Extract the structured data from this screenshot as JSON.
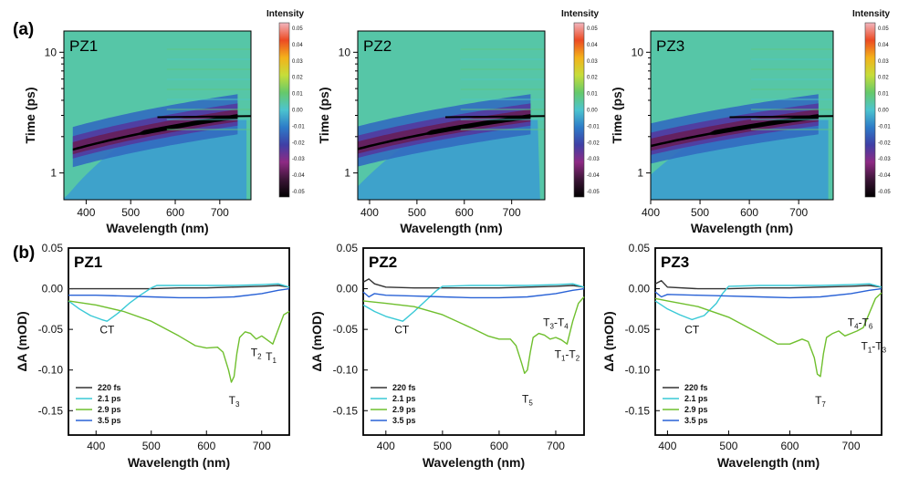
{
  "figure": {
    "panel_a_label": "(a)",
    "panel_b_label": "(b)",
    "colorbar_title": "Intensity",
    "colorbar_ticks": [
      "0.05",
      "0.04",
      "0.03",
      "0.02",
      "0.01",
      "0.00",
      "-0.01",
      "-0.02",
      "-0.03",
      "-0.04",
      "-0.05"
    ],
    "colorbar_ticks_pz3": [
      "0.05",
      "0.04",
      "0.03",
      "0.02",
      "0.01",
      "0.00",
      "-0.01",
      "-0.02",
      "-0.03",
      "-0.04",
      "-0.05"
    ],
    "colormap": [
      "#000000",
      "#3b1536",
      "#8e2a84",
      "#3f3fa6",
      "#2d7bc8",
      "#4cc4cf",
      "#66c96a",
      "#c6dd3a",
      "#f3b21a",
      "#ec4a23",
      "#f2b6bf"
    ],
    "kinetic_colors": {
      "220 fs": "#333333",
      "2.1 ps": "#39c9d6",
      "2.9 ps": "#6fbf2e",
      "3.5 ps": "#2962d6"
    }
  },
  "chart_data": [
    {
      "type": "heatmap",
      "title": "PZ1",
      "xlabel": "Wavelength (nm)",
      "ylabel": "Time (ps)",
      "xlim": [
        350,
        770
      ],
      "ylim": [
        0.6,
        15
      ],
      "yscale": "log",
      "xticks": [
        "400",
        "500",
        "600",
        "700"
      ],
      "yticks": [
        "1",
        "10"
      ],
      "zlim": [
        -0.05,
        0.05
      ],
      "colorbar_label": "Intensity"
    },
    {
      "type": "heatmap",
      "title": "PZ2",
      "xlabel": "Wavelength (nm)",
      "ylabel": "Time (ps)",
      "xlim": [
        375,
        770
      ],
      "ylim": [
        0.6,
        15
      ],
      "yscale": "log",
      "xticks": [
        "400",
        "500",
        "600",
        "700"
      ],
      "yticks": [
        "1",
        "10"
      ],
      "zlim": [
        -0.05,
        0.05
      ],
      "colorbar_label": "Intensity"
    },
    {
      "type": "heatmap",
      "title": "PZ3",
      "xlabel": "Wavelength (nm)",
      "ylabel": "Time (ps)",
      "xlim": [
        400,
        770
      ],
      "ylim": [
        0.6,
        15
      ],
      "yscale": "log",
      "xticks": [
        "400",
        "500",
        "600",
        "700"
      ],
      "yticks": [
        "1",
        "10"
      ],
      "zlim": [
        -0.05,
        0.05
      ],
      "colorbar_label": "Intensity"
    },
    {
      "type": "line",
      "title": "PZ1",
      "xlabel": "Wavelength (nm)",
      "ylabel": "ΔA (mOD)",
      "xlim": [
        350,
        750
      ],
      "ylim": [
        -0.18,
        0.05
      ],
      "xticks": [
        "400",
        "500",
        "600",
        "700"
      ],
      "yticks": [
        "0.05",
        "0.00",
        "-0.05",
        "-0.10",
        "-0.15"
      ],
      "legend": "bottom-left",
      "annotations": [
        {
          "text": "CT",
          "sub": "",
          "x": 420,
          "y": -0.055
        },
        {
          "text": "T",
          "sub": "3",
          "x": 650,
          "y": -0.142
        },
        {
          "text": "T",
          "sub": "2",
          "x": 690,
          "y": -0.083
        },
        {
          "text": "T",
          "sub": "1",
          "x": 717,
          "y": -0.088
        }
      ],
      "series": [
        {
          "name": "220 fs",
          "x": [
            350,
            400,
            450,
            500,
            550,
            600,
            650,
            700,
            730,
            750
          ],
          "y": [
            0.0,
            0.0,
            0.0,
            0.0,
            0.001,
            0.001,
            0.002,
            0.003,
            0.004,
            0.002
          ]
        },
        {
          "name": "2.1 ps",
          "x": [
            350,
            370,
            390,
            410,
            420,
            440,
            460,
            480,
            500,
            510,
            550,
            600,
            650,
            700,
            730,
            750
          ],
          "y": [
            -0.015,
            -0.025,
            -0.033,
            -0.038,
            -0.04,
            -0.03,
            -0.018,
            -0.008,
            0.001,
            0.004,
            0.004,
            0.004,
            0.004,
            0.005,
            0.006,
            0.002
          ]
        },
        {
          "name": "2.9 ps",
          "x": [
            350,
            400,
            450,
            500,
            550,
            580,
            600,
            620,
            630,
            640,
            645,
            650,
            655,
            660,
            670,
            680,
            690,
            700,
            710,
            720,
            730,
            740,
            750
          ],
          "y": [
            -0.015,
            -0.02,
            -0.028,
            -0.04,
            -0.058,
            -0.07,
            -0.073,
            -0.072,
            -0.078,
            -0.1,
            -0.115,
            -0.108,
            -0.08,
            -0.06,
            -0.053,
            -0.055,
            -0.062,
            -0.058,
            -0.063,
            -0.068,
            -0.05,
            -0.032,
            -0.028
          ]
        },
        {
          "name": "3.5 ps",
          "x": [
            350,
            400,
            450,
            500,
            550,
            600,
            650,
            700,
            730,
            750
          ],
          "y": [
            -0.008,
            -0.008,
            -0.009,
            -0.01,
            -0.011,
            -0.011,
            -0.01,
            -0.006,
            -0.002,
            0.0
          ]
        }
      ]
    },
    {
      "type": "line",
      "title": "PZ2",
      "xlabel": "Wavelength (nm)",
      "ylabel": "ΔA (mOD)",
      "xlim": [
        360,
        750
      ],
      "ylim": [
        -0.18,
        0.05
      ],
      "xticks": [
        "400",
        "500",
        "600",
        "700"
      ],
      "yticks": [
        "0.05",
        "0.00",
        "-0.05",
        "-0.10",
        "-0.15"
      ],
      "legend": "bottom-left",
      "annotations": [
        {
          "text": "CT",
          "sub": "",
          "x": 428,
          "y": -0.055
        },
        {
          "text": "T",
          "sub": "5",
          "x": 650,
          "y": -0.14
        },
        {
          "text": "T",
          "sub": "3",
          "text2": "-T",
          "sub2": "4",
          "x": 700,
          "y": -0.046
        },
        {
          "text": "T",
          "sub": "1",
          "text2": "-T",
          "sub2": "2",
          "x": 720,
          "y": -0.085
        }
      ],
      "series": [
        {
          "name": "220 fs",
          "x": [
            360,
            370,
            380,
            400,
            450,
            500,
            550,
            600,
            650,
            700,
            730,
            750
          ],
          "y": [
            0.008,
            0.012,
            0.006,
            0.002,
            0.001,
            0.001,
            0.001,
            0.001,
            0.002,
            0.003,
            0.004,
            0.002
          ]
        },
        {
          "name": "2.1 ps",
          "x": [
            360,
            380,
            400,
            420,
            430,
            450,
            470,
            490,
            500,
            550,
            600,
            650,
            700,
            730,
            750
          ],
          "y": [
            -0.02,
            -0.028,
            -0.034,
            -0.038,
            -0.04,
            -0.028,
            -0.015,
            -0.002,
            0.003,
            0.004,
            0.004,
            0.004,
            0.005,
            0.006,
            0.002
          ]
        },
        {
          "name": "2.9 ps",
          "x": [
            360,
            400,
            450,
            500,
            550,
            580,
            600,
            620,
            630,
            640,
            645,
            650,
            655,
            660,
            670,
            680,
            690,
            700,
            710,
            720,
            730,
            740,
            750
          ],
          "y": [
            -0.015,
            -0.018,
            -0.022,
            -0.032,
            -0.048,
            -0.058,
            -0.062,
            -0.062,
            -0.07,
            -0.092,
            -0.104,
            -0.1,
            -0.078,
            -0.06,
            -0.055,
            -0.057,
            -0.062,
            -0.06,
            -0.063,
            -0.068,
            -0.04,
            -0.018,
            -0.01
          ]
        },
        {
          "name": "3.5 ps",
          "x": [
            360,
            370,
            380,
            400,
            450,
            500,
            550,
            600,
            650,
            700,
            730,
            750
          ],
          "y": [
            -0.004,
            -0.01,
            -0.006,
            -0.008,
            -0.009,
            -0.01,
            -0.011,
            -0.011,
            -0.01,
            -0.006,
            -0.002,
            0.0
          ]
        }
      ]
    },
    {
      "type": "line",
      "title": "PZ3",
      "xlabel": "Wavelength (nm)",
      "ylabel": "ΔA (mOD)",
      "xlim": [
        380,
        750
      ],
      "ylim": [
        -0.18,
        0.05
      ],
      "xticks": [
        "400",
        "500",
        "600",
        "700"
      ],
      "yticks": [
        "0.05",
        "0.00",
        "-0.05",
        "-0.10",
        "-0.15"
      ],
      "legend": "bottom-left",
      "annotations": [
        {
          "text": "CT",
          "sub": "",
          "x": 440,
          "y": -0.055
        },
        {
          "text": "T",
          "sub": "7",
          "x": 650,
          "y": -0.142
        },
        {
          "text": "T",
          "sub": "4",
          "text2": "-T",
          "sub2": "6",
          "x": 715,
          "y": -0.046
        },
        {
          "text": "T",
          "sub": "1",
          "text2": "-T",
          "sub2": "3",
          "x": 737,
          "y": -0.075
        }
      ],
      "series": [
        {
          "name": "220 fs",
          "x": [
            380,
            390,
            400,
            450,
            500,
            550,
            600,
            650,
            700,
            730,
            750
          ],
          "y": [
            0.006,
            0.01,
            0.002,
            0.0,
            0.0,
            0.001,
            0.001,
            0.002,
            0.003,
            0.004,
            0.002
          ]
        },
        {
          "name": "2.1 ps",
          "x": [
            380,
            400,
            420,
            440,
            460,
            480,
            490,
            500,
            550,
            600,
            650,
            700,
            730,
            750
          ],
          "y": [
            -0.015,
            -0.025,
            -0.032,
            -0.038,
            -0.033,
            -0.018,
            -0.006,
            0.003,
            0.004,
            0.004,
            0.004,
            0.005,
            0.006,
            0.002
          ]
        },
        {
          "name": "2.9 ps",
          "x": [
            380,
            400,
            450,
            500,
            550,
            580,
            600,
            620,
            630,
            640,
            645,
            650,
            655,
            660,
            670,
            680,
            690,
            700,
            710,
            720,
            730,
            740,
            750
          ],
          "y": [
            -0.012,
            -0.015,
            -0.022,
            -0.035,
            -0.055,
            -0.068,
            -0.068,
            -0.062,
            -0.065,
            -0.085,
            -0.105,
            -0.108,
            -0.08,
            -0.06,
            -0.055,
            -0.052,
            -0.058,
            -0.055,
            -0.052,
            -0.048,
            -0.03,
            -0.012,
            -0.005
          ]
        },
        {
          "name": "3.5 ps",
          "x": [
            380,
            390,
            400,
            450,
            500,
            550,
            600,
            650,
            700,
            730,
            750
          ],
          "y": [
            -0.004,
            -0.01,
            -0.007,
            -0.008,
            -0.009,
            -0.01,
            -0.011,
            -0.01,
            -0.006,
            -0.002,
            0.0
          ]
        }
      ]
    }
  ]
}
